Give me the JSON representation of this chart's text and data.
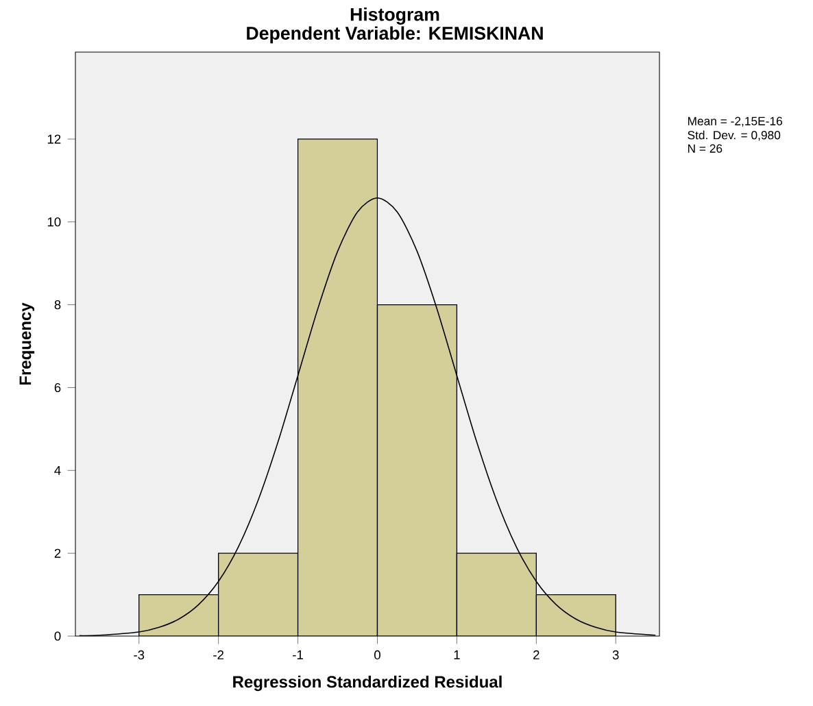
{
  "chart_data": {
    "type": "histogram",
    "title": "Histogram",
    "subtitle": "Dependent Variable: KEMISKINAN",
    "xlabel": "Regression Standardized Residual",
    "ylabel": "Frequency",
    "bins": [
      -3,
      -2,
      -1,
      0,
      1,
      2,
      3
    ],
    "values": [
      1,
      2,
      12,
      8,
      2,
      1
    ],
    "color": "#d4cf99",
    "series": [
      {
        "type": "line",
        "color": "#000000",
        "x": [
          -3.75,
          -3.5,
          -3,
          -2.75,
          -2.5,
          -2.25,
          -2,
          -1.75,
          -1.5,
          -1.25,
          -1,
          -0.75,
          -0.5,
          -0.25,
          0,
          0.25,
          0.5,
          0.75,
          1,
          1.25,
          1.5,
          1.75,
          2,
          2.25,
          2.5,
          2.75,
          3,
          3.5
        ],
        "values": [
          0.01,
          0.02,
          0.1,
          0.21,
          0.41,
          0.76,
          1.32,
          2.15,
          3.28,
          4.69,
          6.29,
          7.9,
          9.29,
          10.24,
          10.58,
          10.24,
          9.29,
          7.9,
          6.29,
          4.69,
          3.28,
          2.15,
          1.32,
          0.76,
          0.41,
          0.21,
          0.1,
          0.02
        ]
      }
    ],
    "xlim": [
      -3.8,
      3.55
    ],
    "ylim": [
      0,
      14.1
    ],
    "xticks": [
      -3,
      -2,
      -1,
      0,
      1,
      2,
      3
    ],
    "yticks": [
      0,
      2,
      4,
      6,
      8,
      10,
      12
    ],
    "grid": false,
    "annotations": [
      "Mean = -2,15E-16",
      "Std. Dev. = 0,980",
      "N = 26"
    ]
  }
}
